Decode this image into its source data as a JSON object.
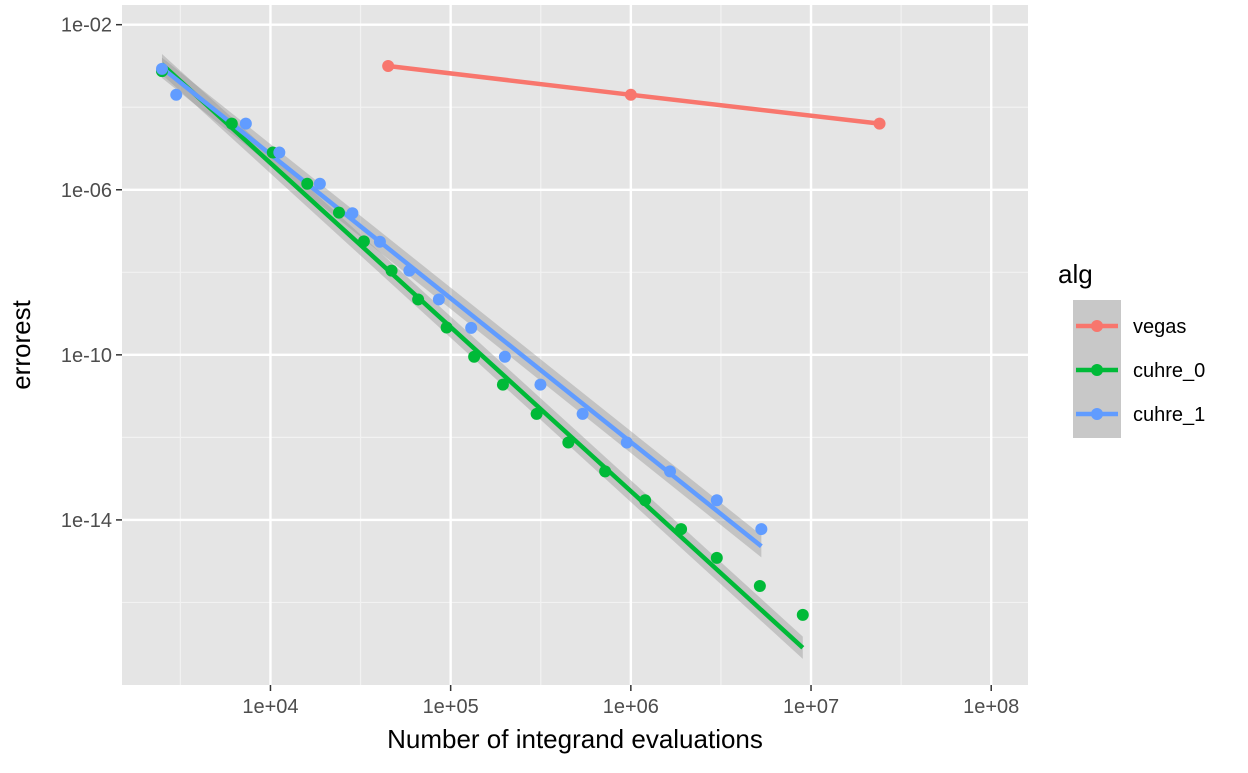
{
  "chart_data": {
    "type": "scatter",
    "title": "",
    "xlabel": "Number of integrand evaluations",
    "ylabel": "errorest",
    "x_scale": "log10",
    "y_scale": "log10",
    "xlim": [
      1500,
      160000000
    ],
    "ylim": [
      1e-18,
      0.03
    ],
    "x_ticks": [
      10000,
      100000,
      1000000,
      10000000,
      100000000
    ],
    "x_tick_labels": [
      "1e+04",
      "1e+05",
      "1e+06",
      "1e+07",
      "1e+08"
    ],
    "y_ticks": [
      0.01,
      1e-06,
      1e-10,
      1e-14
    ],
    "y_tick_labels": [
      "1e-02",
      "1e-06",
      "1e-10",
      "1e-14"
    ],
    "grid": true,
    "background": "#e5e5e5",
    "legend": {
      "title": "alg",
      "position": "right"
    },
    "series": [
      {
        "name": "vegas",
        "color": "#f8766d",
        "points_connected": true,
        "points": [
          [
            45000,
            0.001
          ],
          [
            1000000,
            0.0002
          ],
          [
            24000000,
            4e-05
          ]
        ],
        "fit": null
      },
      {
        "name": "cuhre_0",
        "color": "#00ba38",
        "points_connected": false,
        "points": [
          [
            2500,
            0.00075
          ],
          [
            6100,
            4e-05
          ],
          [
            10300,
            8e-06
          ],
          [
            16000,
            1.4e-06
          ],
          [
            24000,
            2.8e-07
          ],
          [
            33000,
            5.6e-08
          ],
          [
            47000,
            1.1e-08
          ],
          [
            66000,
            2.2e-09
          ],
          [
            95000,
            4.6e-10
          ],
          [
            135000,
            9e-11
          ],
          [
            195000,
            1.9e-11
          ],
          [
            300000,
            3.7e-12
          ],
          [
            450000,
            7.5e-13
          ],
          [
            720000,
            1.5e-13
          ],
          [
            1200000,
            3e-14
          ],
          [
            1900000,
            6e-15
          ],
          [
            3000000,
            1.2e-15
          ],
          [
            5200000,
            2.5e-16
          ],
          [
            9000000,
            5e-17
          ]
        ],
        "fit": {
          "from": [
            2500,
            0.0011
          ],
          "to": [
            9000000,
            8e-18
          ],
          "band_fraction_start": 0.55,
          "band_fraction_end": 0.6
        }
      },
      {
        "name": "cuhre_1",
        "color": "#619cff",
        "points_connected": false,
        "points": [
          [
            2500,
            0.00085
          ],
          [
            3000,
            0.0002
          ],
          [
            7300,
            4e-05
          ],
          [
            11200,
            8e-06
          ],
          [
            18800,
            1.4e-06
          ],
          [
            28500,
            2.7e-07
          ],
          [
            40500,
            5.5e-08
          ],
          [
            59000,
            1.1e-08
          ],
          [
            86000,
            2.2e-09
          ],
          [
            130000,
            4.5e-10
          ],
          [
            200000,
            9e-11
          ],
          [
            315000,
            1.9e-11
          ],
          [
            540000,
            3.7e-12
          ],
          [
            950000,
            7.5e-13
          ],
          [
            1650000,
            1.5e-13
          ],
          [
            3000000,
            3e-14
          ],
          [
            5300000,
            6e-15
          ]
        ],
        "fit": {
          "from": [
            2500,
            0.0009
          ],
          "to": [
            5300000,
            2.3e-15
          ],
          "band_fraction_start": 0.55,
          "band_fraction_end": 0.6
        }
      }
    ]
  }
}
